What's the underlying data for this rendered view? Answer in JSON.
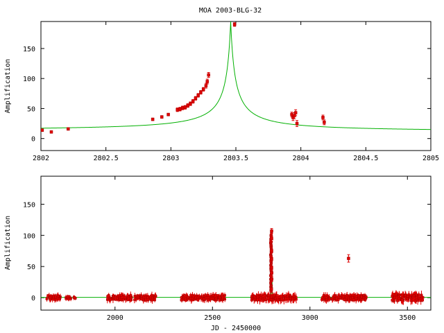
{
  "chart_data": [
    {
      "type": "scatter",
      "title": "MOA 2003-BLG-32",
      "xlabel": "",
      "ylabel": "Amplification",
      "xlim": [
        2802,
        2805
      ],
      "ylim": [
        -20,
        195
      ],
      "xticks": [
        2802,
        2802.5,
        2803,
        2803.5,
        2804,
        2804.5,
        2805
      ],
      "xtick_labels": [
        "2802",
        "2802.5",
        "2803",
        "2803.5",
        "2804",
        "2804.5",
        "2805"
      ],
      "yticks": [
        0,
        50,
        100,
        150
      ],
      "ytick_labels": [
        "0",
        "50",
        "100",
        "150"
      ],
      "grid": false,
      "model": {
        "t0": 2803.46,
        "peak": 195,
        "baseline_left": 13,
        "baseline_right": 11,
        "color": "#00b000"
      },
      "points": [
        {
          "x": 2802.01,
          "y": 14,
          "err": 2
        },
        {
          "x": 2802.08,
          "y": 11,
          "err": 2
        },
        {
          "x": 2802.21,
          "y": 16,
          "err": 2
        },
        {
          "x": 2802.86,
          "y": 32,
          "err": 2
        },
        {
          "x": 2802.93,
          "y": 36,
          "err": 2
        },
        {
          "x": 2802.98,
          "y": 40,
          "err": 2
        },
        {
          "x": 2803.05,
          "y": 48,
          "err": 3
        },
        {
          "x": 2803.07,
          "y": 49,
          "err": 3
        },
        {
          "x": 2803.09,
          "y": 51,
          "err": 3
        },
        {
          "x": 2803.11,
          "y": 52,
          "err": 3
        },
        {
          "x": 2803.13,
          "y": 55,
          "err": 3
        },
        {
          "x": 2803.15,
          "y": 58,
          "err": 3
        },
        {
          "x": 2803.17,
          "y": 62,
          "err": 3
        },
        {
          "x": 2803.19,
          "y": 67,
          "err": 3
        },
        {
          "x": 2803.21,
          "y": 72,
          "err": 3
        },
        {
          "x": 2803.23,
          "y": 77,
          "err": 3
        },
        {
          "x": 2803.25,
          "y": 82,
          "err": 3
        },
        {
          "x": 2803.27,
          "y": 88,
          "err": 4
        },
        {
          "x": 2803.28,
          "y": 95,
          "err": 4
        },
        {
          "x": 2803.29,
          "y": 106,
          "err": 4
        },
        {
          "x": 2803.49,
          "y": 190,
          "err": 3
        },
        {
          "x": 2803.93,
          "y": 40,
          "err": 4
        },
        {
          "x": 2803.94,
          "y": 35,
          "err": 5
        },
        {
          "x": 2803.95,
          "y": 38,
          "err": 5
        },
        {
          "x": 2803.96,
          "y": 43,
          "err": 5
        },
        {
          "x": 2803.97,
          "y": 25,
          "err": 5
        },
        {
          "x": 2804.17,
          "y": 35,
          "err": 4
        },
        {
          "x": 2804.18,
          "y": 27,
          "err": 4
        }
      ]
    },
    {
      "type": "scatter",
      "title": "",
      "xlabel": "JD - 2450000",
      "ylabel": "Amplification",
      "xlim": [
        1620,
        3620
      ],
      "ylim": [
        -20,
        195
      ],
      "xticks": [
        2000,
        2500,
        3000,
        3500
      ],
      "xtick_labels": [
        "2000",
        "2500",
        "3000",
        "3500"
      ],
      "yticks": [
        0,
        50,
        100,
        150
      ],
      "ytick_labels": [
        "0",
        "50",
        "100",
        "150"
      ],
      "grid": false,
      "model": {
        "t0": 2803.46,
        "peak": 175,
        "baseline": 0.5,
        "color": "#00b000"
      },
      "seasons": [
        {
          "start": 1650,
          "end": 1720,
          "n": 45,
          "spread": 4,
          "err": 4
        },
        {
          "start": 1740,
          "end": 1810,
          "n": 18,
          "spread": 2,
          "err": 3
        },
        {
          "start": 1960,
          "end": 2210,
          "n": 140,
          "spread": 4,
          "err": 4
        },
        {
          "start": 2340,
          "end": 2570,
          "n": 150,
          "spread": 4,
          "err": 4
        },
        {
          "start": 2700,
          "end": 2930,
          "n": 170,
          "spread": 4,
          "err": 5
        },
        {
          "start": 3060,
          "end": 3290,
          "n": 150,
          "spread": 4,
          "err": 4
        },
        {
          "start": 3420,
          "end": 3580,
          "n": 120,
          "spread": 5,
          "err": 5
        }
      ],
      "points": [
        {
          "x": 2803.0,
          "y": 48,
          "err": 3
        },
        {
          "x": 2803.1,
          "y": 62,
          "err": 3
        },
        {
          "x": 2803.2,
          "y": 75,
          "err": 3
        },
        {
          "x": 2803.3,
          "y": 95,
          "err": 4
        },
        {
          "x": 2803.4,
          "y": 107,
          "err": 4
        },
        {
          "x": 2803.9,
          "y": 40,
          "err": 4
        },
        {
          "x": 2804.2,
          "y": 30,
          "err": 4
        },
        {
          "x": 2802.1,
          "y": 14,
          "err": 2
        },
        {
          "x": 3198,
          "y": 63,
          "err": 6
        }
      ]
    }
  ]
}
